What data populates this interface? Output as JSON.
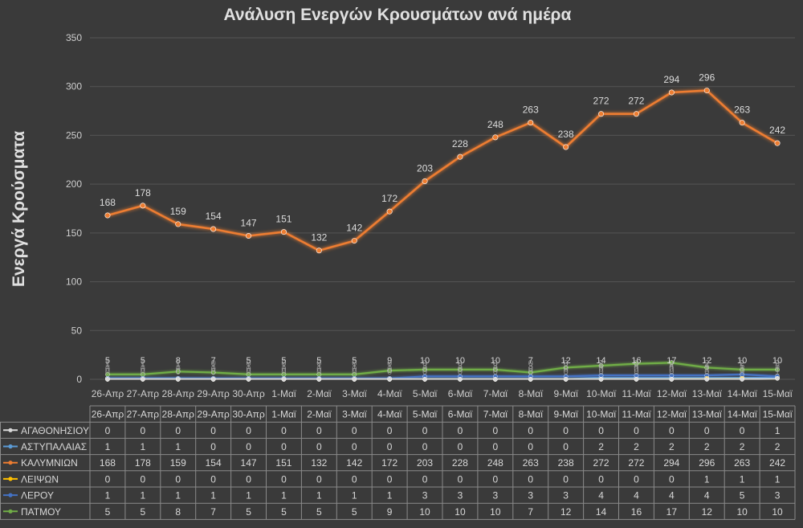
{
  "chart_data": {
    "type": "line",
    "title": "Ανάλυση Ενεργών Κρουσμάτων ανά ημέρα",
    "ylabel": "Ενεργά Κρούσματα",
    "xlabel": "",
    "ylim": [
      0,
      350
    ],
    "yticks": [
      0,
      50,
      100,
      150,
      200,
      250,
      300,
      350
    ],
    "grid": true,
    "legend": "data-table-below",
    "categories": [
      "26-Απρ",
      "27-Απρ",
      "28-Απρ",
      "29-Απρ",
      "30-Απρ",
      "1-Μαϊ",
      "2-Μαϊ",
      "3-Μαϊ",
      "4-Μαϊ",
      "5-Μαϊ",
      "6-Μαϊ",
      "7-Μαϊ",
      "8-Μαϊ",
      "9-Μαϊ",
      "10-Μαϊ",
      "11-Μαϊ",
      "12-Μαϊ",
      "13-Μαϊ",
      "14-Μαϊ",
      "15-Μαϊ"
    ],
    "series": [
      {
        "name": "ΑΓΑΘΟΝΗΣΙΟΥ",
        "color": "#d9d9d9",
        "values": [
          0,
          0,
          0,
          0,
          0,
          0,
          0,
          0,
          0,
          0,
          0,
          0,
          0,
          0,
          0,
          0,
          0,
          0,
          0,
          1
        ]
      },
      {
        "name": "ΑΣΤΥΠΑΛΑΙΑΣ",
        "color": "#5b9bd5",
        "values": [
          1,
          1,
          1,
          0,
          0,
          0,
          0,
          0,
          0,
          0,
          0,
          0,
          0,
          0,
          2,
          2,
          2,
          2,
          2,
          2
        ]
      },
      {
        "name": "ΚΑΛΥΜΝΙΩΝ",
        "color": "#ed7d31",
        "values": [
          168,
          178,
          159,
          154,
          147,
          151,
          132,
          142,
          172,
          203,
          228,
          248,
          263,
          238,
          272,
          272,
          294,
          296,
          263,
          242
        ]
      },
      {
        "name": "ΛΕΙΨΩΝ",
        "color": "#ffc000",
        "values": [
          0,
          0,
          0,
          0,
          0,
          0,
          0,
          0,
          0,
          0,
          0,
          0,
          0,
          0,
          0,
          0,
          0,
          1,
          1,
          1
        ]
      },
      {
        "name": "ΛΕΡΟΥ",
        "color": "#4472c4",
        "values": [
          1,
          1,
          1,
          1,
          1,
          1,
          1,
          1,
          1,
          3,
          3,
          3,
          3,
          3,
          4,
          4,
          4,
          4,
          5,
          3
        ]
      },
      {
        "name": "ΠΑΤΜΟΥ",
        "color": "#70ad47",
        "values": [
          5,
          5,
          8,
          7,
          5,
          5,
          5,
          5,
          9,
          10,
          10,
          10,
          7,
          12,
          14,
          16,
          17,
          12,
          10,
          10
        ]
      }
    ]
  }
}
